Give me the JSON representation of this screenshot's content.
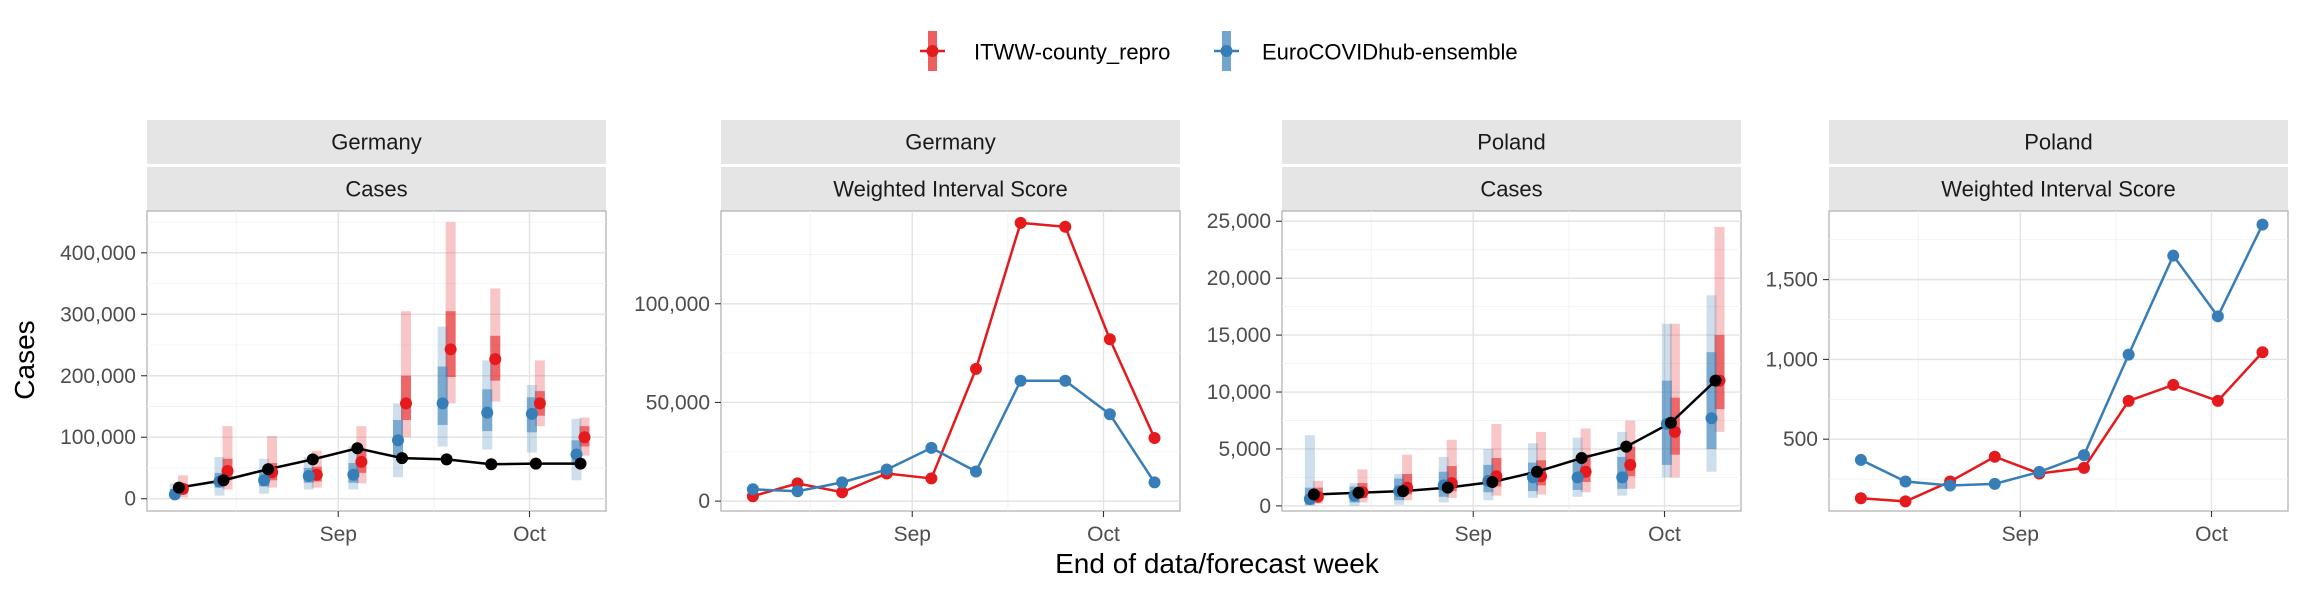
{
  "legend": {
    "items": [
      {
        "label": "ITWW-county_repro",
        "color": "#e41a1c"
      },
      {
        "label": "EuroCOVIDhub-ensemble",
        "color": "#377eb8"
      }
    ]
  },
  "axes": {
    "x_title": "End of data/forecast week",
    "y_title": "Cases"
  },
  "chart_data": [
    {
      "type": "line",
      "panel_strip": [
        "Germany",
        "Cases"
      ],
      "x_dates": [
        "2021-08-07",
        "2021-08-14",
        "2021-08-21",
        "2021-08-28",
        "2021-09-04",
        "2021-09-11",
        "2021-09-18",
        "2021-09-25",
        "2021-10-02",
        "2021-10-09"
      ],
      "x_ticks": [
        "Sep",
        "Oct"
      ],
      "x_tick_dates": [
        "2021-09-01",
        "2021-10-01"
      ],
      "y_ticks": [
        "0",
        "100,000",
        "200,000",
        "300,000",
        "400,000"
      ],
      "y_tick_values": [
        0,
        100000,
        200000,
        300000,
        400000
      ],
      "ylim": [
        -20000,
        468000
      ],
      "observed": {
        "color": "#000000",
        "values": [
          18000,
          30000,
          48000,
          64000,
          82000,
          66000,
          64000,
          56000,
          57000,
          57000
        ]
      },
      "series": [
        {
          "name": "ITWW-county_repro",
          "color": "#e41a1c",
          "median": [
            16000,
            45000,
            43000,
            39000,
            60000,
            155000,
            243000,
            227000,
            155000,
            100000
          ],
          "inner": [
            [
              9000,
              24000
            ],
            [
              30000,
              65000
            ],
            [
              30000,
              58000
            ],
            [
              28000,
              52000
            ],
            [
              42000,
              78000
            ],
            [
              128000,
              200000
            ],
            [
              198000,
              305000
            ],
            [
              192000,
              265000
            ],
            [
              135000,
              175000
            ],
            [
              85000,
              118000
            ]
          ],
          "outer": [
            [
              2000,
              38000
            ],
            [
              15000,
              118000
            ],
            [
              18000,
              102000
            ],
            [
              18000,
              78000
            ],
            [
              25000,
              118000
            ],
            [
              100000,
              305000
            ],
            [
              155000,
              450000
            ],
            [
              158000,
              342000
            ],
            [
              118000,
              225000
            ],
            [
              70000,
              132000
            ]
          ]
        },
        {
          "name": "EuroCOVIDhub-ensemble",
          "color": "#377eb8",
          "median": [
            7000,
            28000,
            30000,
            37000,
            39000,
            95000,
            155000,
            140000,
            138000,
            72000
          ],
          "inner": [
            [
              2000,
              16000
            ],
            [
              18000,
              42000
            ],
            [
              20000,
              46000
            ],
            [
              26000,
              50000
            ],
            [
              26000,
              58000
            ],
            [
              70000,
              128000
            ],
            [
              120000,
              215000
            ],
            [
              110000,
              178000
            ],
            [
              108000,
              165000
            ],
            [
              55000,
              95000
            ]
          ],
          "outer": [
            [
              0,
              25000
            ],
            [
              5000,
              68000
            ],
            [
              8000,
              65000
            ],
            [
              15000,
              68000
            ],
            [
              15000,
              85000
            ],
            [
              35000,
              155000
            ],
            [
              85000,
              280000
            ],
            [
              80000,
              225000
            ],
            [
              75000,
              185000
            ],
            [
              30000,
              130000
            ]
          ]
        }
      ]
    },
    {
      "type": "line",
      "panel_strip": [
        "Germany",
        "Weighted Interval Score"
      ],
      "x_dates": [
        "2021-08-07",
        "2021-08-14",
        "2021-08-21",
        "2021-08-28",
        "2021-09-04",
        "2021-09-11",
        "2021-09-18",
        "2021-09-25",
        "2021-10-02",
        "2021-10-09"
      ],
      "x_ticks": [
        "Sep",
        "Oct"
      ],
      "x_tick_dates": [
        "2021-09-01",
        "2021-10-01"
      ],
      "y_ticks": [
        "0",
        "50,000",
        "100,000"
      ],
      "y_tick_values": [
        0,
        50000,
        100000
      ],
      "ylim": [
        -5000,
        147000
      ],
      "series": [
        {
          "name": "ITWW-county_repro",
          "color": "#e41a1c",
          "values": [
            2500,
            9000,
            4500,
            14000,
            11500,
            67000,
            141000,
            139000,
            82000,
            32000
          ]
        },
        {
          "name": "EuroCOVIDhub-ensemble",
          "color": "#377eb8",
          "values": [
            6000,
            5000,
            9500,
            16000,
            27000,
            15000,
            61000,
            61000,
            44000,
            9500
          ]
        }
      ]
    },
    {
      "type": "line",
      "panel_strip": [
        "Poland",
        "Cases"
      ],
      "x_dates": [
        "2021-08-07",
        "2021-08-14",
        "2021-08-21",
        "2021-08-28",
        "2021-09-04",
        "2021-09-11",
        "2021-09-18",
        "2021-09-25",
        "2021-10-02",
        "2021-10-09"
      ],
      "x_ticks": [
        "Sep",
        "Oct"
      ],
      "x_tick_dates": [
        "2021-09-01",
        "2021-10-01"
      ],
      "y_ticks": [
        "0",
        "5,000",
        "10,000",
        "15,000",
        "20,000",
        "25,000"
      ],
      "y_tick_values": [
        0,
        5000,
        10000,
        15000,
        20000,
        25000
      ],
      "ylim": [
        -450,
        25900
      ],
      "observed": {
        "color": "#000000",
        "values": [
          1000,
          1150,
          1300,
          1600,
          2100,
          3000,
          4200,
          5200,
          7300,
          11000
        ]
      },
      "series": [
        {
          "name": "ITWW-county_repro",
          "color": "#e41a1c",
          "median": [
            800,
            1200,
            1600,
            2000,
            2600,
            2600,
            3000,
            3600,
            6500,
            11000
          ],
          "inner": [
            [
              500,
              1600
            ],
            [
              700,
              2000
            ],
            [
              1000,
              2800
            ],
            [
              1300,
              3500
            ],
            [
              1700,
              4200
            ],
            [
              1800,
              4000
            ],
            [
              2100,
              4500
            ],
            [
              2600,
              5200
            ],
            [
              4500,
              9500
            ],
            [
              8500,
              15000
            ]
          ],
          "outer": [
            [
              200,
              2200
            ],
            [
              300,
              3200
            ],
            [
              500,
              4500
            ],
            [
              700,
              5800
            ],
            [
              900,
              7200
            ],
            [
              1000,
              6500
            ],
            [
              1200,
              6800
            ],
            [
              1500,
              7500
            ],
            [
              2500,
              16000
            ],
            [
              6500,
              24500
            ]
          ]
        },
        {
          "name": "EuroCOVIDhub-ensemble",
          "color": "#377eb8",
          "median": [
            600,
            900,
            1300,
            1800,
            2200,
            2500,
            2500,
            2500,
            7200,
            7700
          ]
        },
        {
          "name": "_bands",
          "color": "#377eb8",
          "inner": [
            [
              100,
              1600
            ],
            [
              300,
              1700
            ],
            [
              500,
              2400
            ],
            [
              800,
              3000
            ],
            [
              1200,
              3600
            ],
            [
              1300,
              3800
            ],
            [
              1400,
              4000
            ],
            [
              1500,
              4300
            ],
            [
              3600,
              11000
            ],
            [
              5000,
              13500
            ]
          ],
          "outer": [
            [
              0,
              6200
            ],
            [
              0,
              2000
            ],
            [
              100,
              2800
            ],
            [
              300,
              4300
            ],
            [
              500,
              5000
            ],
            [
              700,
              5500
            ],
            [
              800,
              6000
            ],
            [
              900,
              6500
            ],
            [
              2500,
              16000
            ],
            [
              3000,
              18500
            ]
          ]
        }
      ]
    },
    {
      "type": "line",
      "panel_strip": [
        "Poland",
        "Weighted Interval Score"
      ],
      "x_dates": [
        "2021-08-07",
        "2021-08-14",
        "2021-08-21",
        "2021-08-28",
        "2021-09-04",
        "2021-09-11",
        "2021-09-18",
        "2021-09-25",
        "2021-10-02",
        "2021-10-09"
      ],
      "x_ticks": [
        "Sep",
        "Oct"
      ],
      "x_tick_dates": [
        "2021-09-01",
        "2021-10-01"
      ],
      "y_ticks": [
        "500",
        "1,000",
        "1,500"
      ],
      "y_tick_values": [
        500,
        1000,
        1500
      ],
      "ylim": [
        50,
        1930
      ],
      "series": [
        {
          "name": "ITWW-county_repro",
          "color": "#e41a1c",
          "values": [
            130,
            110,
            235,
            390,
            285,
            320,
            740,
            840,
            740,
            1045
          ]
        },
        {
          "name": "EuroCOVIDhub-ensemble",
          "color": "#377eb8",
          "values": [
            370,
            235,
            210,
            220,
            295,
            400,
            1030,
            1650,
            1270,
            1845
          ]
        }
      ]
    }
  ]
}
